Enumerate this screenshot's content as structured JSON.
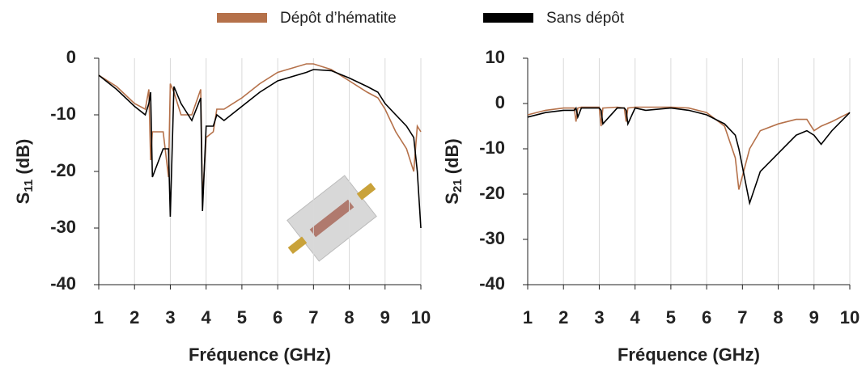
{
  "chart_data": [
    {
      "type": "line",
      "ylabel": [
        "S",
        "11",
        " (dB)"
      ],
      "xlabel": "Fréquence (GHz)",
      "x": [
        1,
        1.5,
        2,
        2.3,
        2.4,
        2.45,
        2.5,
        2.8,
        2.95,
        3.0,
        3.1,
        3.3,
        3.6,
        3.85,
        3.9,
        4.0,
        4.2,
        4.3,
        4.5,
        5,
        5.5,
        6,
        6.8,
        7,
        7.5,
        8,
        8.5,
        8.8,
        9,
        9.3,
        9.6,
        9.8,
        9.9,
        10
      ],
      "series": [
        {
          "name": "Dépôt d’hématite",
          "color": "#b5714a",
          "values": [
            -3,
            -5,
            -8,
            -9,
            -5.5,
            -18,
            -13,
            -13,
            -21,
            -4.5,
            -6,
            -10,
            -10,
            -5.5,
            -25,
            -14,
            -13,
            -9,
            -9,
            -7,
            -4.5,
            -2.5,
            -1,
            -1,
            -2,
            -4,
            -6,
            -7,
            -9,
            -13,
            -16,
            -20,
            -12,
            -13
          ]
        },
        {
          "name": "Sans dépôt",
          "color": "#000000",
          "values": [
            -3,
            -5.5,
            -8.5,
            -10,
            -8,
            -6,
            -21,
            -16,
            -16,
            -28,
            -5,
            -8,
            -11,
            -7,
            -27,
            -12,
            -12,
            -10,
            -11,
            -8.5,
            -6,
            -4,
            -2.5,
            -2,
            -2.2,
            -3.5,
            -5,
            -6,
            -8,
            -10,
            -12,
            -14,
            -20,
            -30
          ]
        }
      ],
      "xlim": [
        1,
        10
      ],
      "xticks": [
        1,
        2,
        3,
        4,
        5,
        6,
        7,
        8,
        9,
        10
      ],
      "ylim": [
        -40,
        0
      ],
      "yticks": [
        -40,
        -30,
        -20,
        -10,
        0
      ],
      "grid": true
    },
    {
      "type": "line",
      "ylabel": [
        "S",
        "21",
        " (dB)"
      ],
      "xlabel": "Fréquence (GHz)",
      "x": [
        1,
        1.5,
        2,
        2.3,
        2.35,
        2.4,
        2.5,
        3,
        3.05,
        3.1,
        3.5,
        3.7,
        3.75,
        3.8,
        4,
        4.3,
        5,
        5.5,
        6,
        6.5,
        6.8,
        6.9,
        7.2,
        7.5,
        8,
        8.5,
        8.8,
        9,
        9.2,
        9.5,
        10
      ],
      "series": [
        {
          "name": "Dépôt d’hématite",
          "color": "#b5714a",
          "values": [
            -2.5,
            -1.5,
            -1,
            -1,
            -4,
            -1,
            -0.8,
            -0.8,
            -5,
            -1,
            -0.8,
            -1,
            -4,
            -1,
            -0.8,
            -0.8,
            -0.8,
            -1,
            -2,
            -5,
            -12,
            -19,
            -10,
            -6,
            -4.5,
            -3.5,
            -3.5,
            -6,
            -5,
            -4,
            -2
          ]
        },
        {
          "name": "Sans dépôt",
          "color": "#000000",
          "values": [
            -3,
            -2,
            -1.5,
            -1.5,
            -1,
            -3,
            -1,
            -1,
            -1.5,
            -4.5,
            -1,
            -1,
            -1.5,
            -4.5,
            -1,
            -1.5,
            -1,
            -1.5,
            -2.5,
            -4.5,
            -7,
            -10,
            -22,
            -15,
            -11,
            -7,
            -6,
            -7,
            -9,
            -6,
            -2
          ]
        }
      ],
      "xlim": [
        1,
        10
      ],
      "xticks": [
        1,
        2,
        3,
        4,
        5,
        6,
        7,
        8,
        9,
        10
      ],
      "ylim": [
        -40,
        10
      ],
      "yticks": [
        -40,
        -30,
        -20,
        -10,
        0,
        10
      ],
      "grid": true
    }
  ]
}
